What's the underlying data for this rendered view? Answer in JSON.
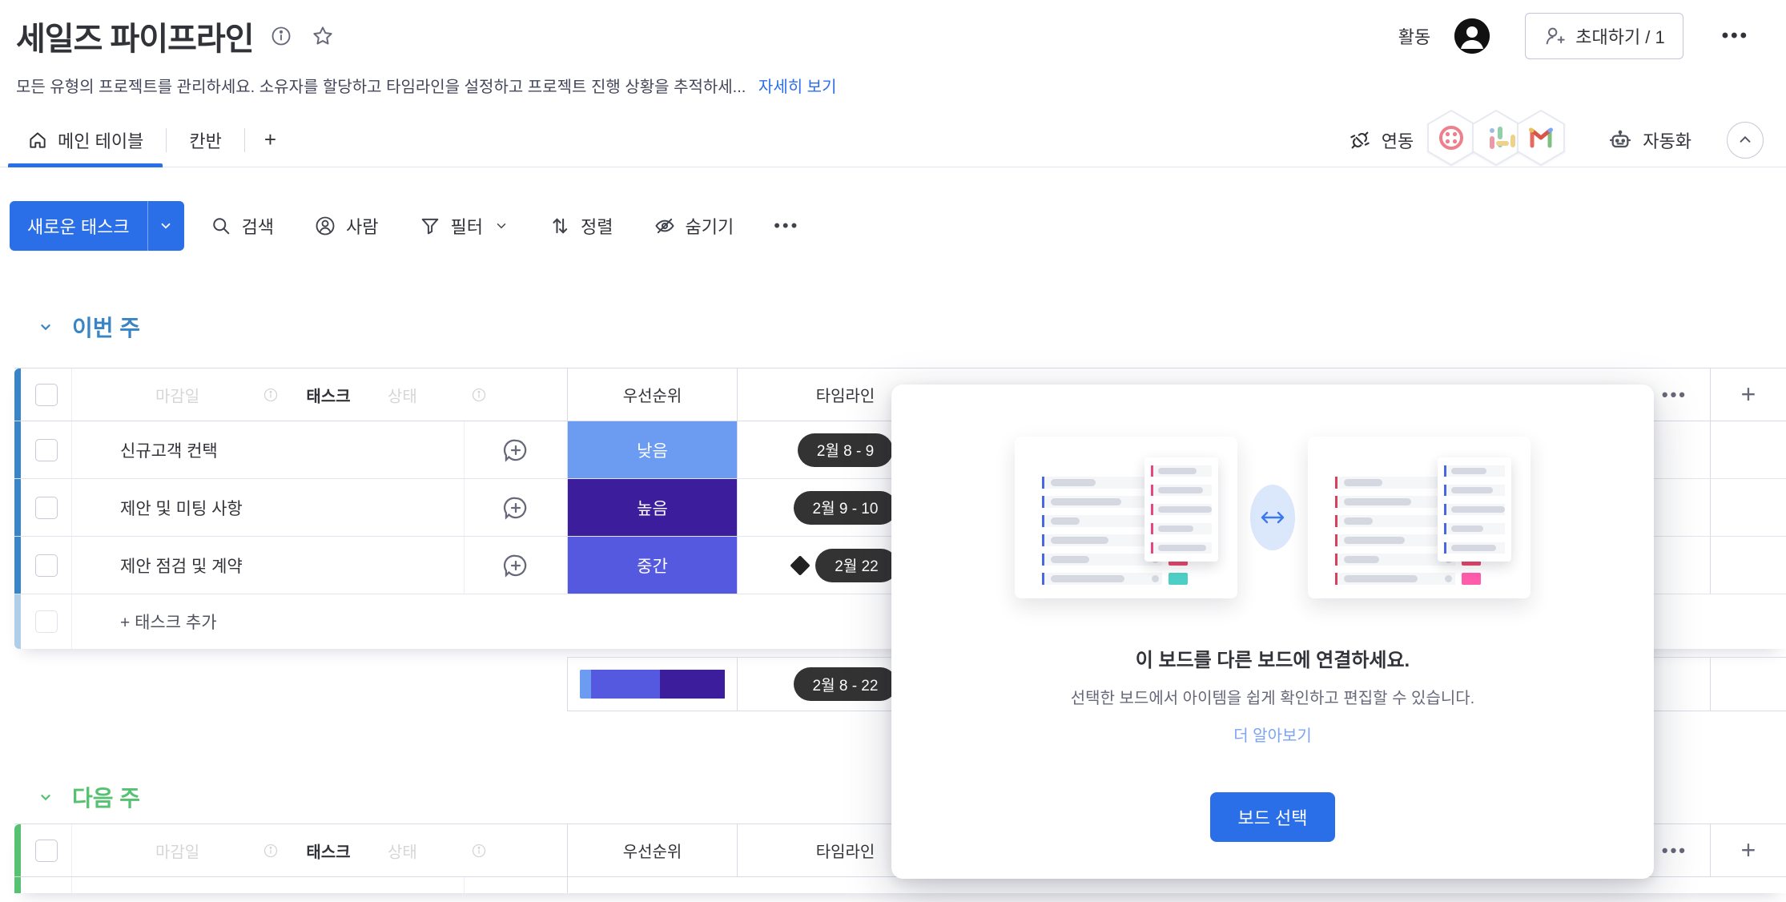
{
  "colors": {
    "accent": "#2b6fe8",
    "text": "#323338",
    "muted": "#676879",
    "group_blue": "#3984c4",
    "group_green": "#56c271",
    "pill_dark": "#333333"
  },
  "header": {
    "title": "세일즈 파이프라인",
    "activity_label": "활동",
    "invite_label": "초대하기 / 1",
    "more": "•••",
    "description": "모든 유형의 프로젝트를 관리하세요. 소유자를 할당하고 타임라인을 설정하고 프로젝트 진행 상황을 추적하세...",
    "see_more": "자세히 보기"
  },
  "tabs": {
    "items": [
      {
        "label": "메인 테이블",
        "active": true
      },
      {
        "label": "칸반",
        "active": false
      }
    ],
    "add_tab": "+",
    "integrate_label": "연동",
    "apps": [
      "twilio",
      "slack",
      "gmail"
    ],
    "automate_label": "자동화"
  },
  "toolbar": {
    "new_task": "새로운 태스크",
    "search": "검색",
    "person": "사람",
    "filter": "필터",
    "sort": "정렬",
    "hide": "숨기기",
    "more": "•••"
  },
  "table": {
    "columns": {
      "ghost_due": "마감일",
      "task": "태스크",
      "ghost_status": "상태",
      "priority": "우선순위",
      "timeline": "타임라인"
    },
    "header_more": "•••",
    "add_column": "+",
    "add_task": "+ 태스크 추가"
  },
  "groups": [
    {
      "name": "이번 주",
      "color": "#3984c4",
      "show_add": true,
      "show_summary": true,
      "partial_row": false,
      "rows": [
        {
          "task": "신규고객 컨택",
          "priority": "낮음",
          "priority_color": "#6c9bf2",
          "timeline": "2월 8 - 9",
          "milestone": false
        },
        {
          "task": "제안 및 미팅 사항",
          "priority": "높음",
          "priority_color": "#3c1e9c",
          "timeline": "2월 9 - 10",
          "milestone": false
        },
        {
          "task": "제안 점검 및 계약",
          "priority": "중간",
          "priority_color": "#5559df",
          "timeline": "2월 22",
          "milestone": true
        }
      ],
      "summary": {
        "timeline": "2월 8 - 22",
        "bar": [
          {
            "color": "#6c9bf2",
            "pct": 8
          },
          {
            "color": "#5559df",
            "pct": 47
          },
          {
            "color": "#3c1e9c",
            "pct": 45
          }
        ]
      }
    },
    {
      "name": "다음 주",
      "color": "#56c271",
      "show_add": false,
      "show_summary": false,
      "partial_row": true,
      "rows": []
    }
  ],
  "modal": {
    "title": "이 보드를 다른 보드에 연결하세요.",
    "description": "선택한 보드에서 아이템을 쉽게 확인하고 편집할 수 있습니다.",
    "learn_more": "더 알아보기",
    "select_button": "보드 선택",
    "illustration": {
      "cards": [
        {
          "accent": "#4a67e3",
          "overlay_accent": "#e8457e",
          "rows": [
            {
              "pill": 56,
              "chip": "#35c06c"
            },
            {
              "pill": 88,
              "chip": "#a358df"
            },
            {
              "pill": 36,
              "chip": "#35c06c"
            },
            {
              "pill": 72,
              "chip": "#f2a93b"
            },
            {
              "pill": 48,
              "chip": "#e8456c"
            },
            {
              "pill": 92,
              "chip": "#4ecfc5"
            }
          ],
          "overlay_pills": [
            48,
            56,
            76,
            44,
            60
          ]
        },
        {
          "accent": "#d9405c",
          "overlay_accent": "#4a67e3",
          "rows": [
            {
              "pill": 48,
              "chip": "#f2a93b"
            },
            {
              "pill": 84,
              "chip": "#e8456c"
            },
            {
              "pill": 36,
              "chip": "#f2a93b"
            },
            {
              "pill": 76,
              "chip": "#35c06c"
            },
            {
              "pill": 44,
              "chip": "#e8456c"
            },
            {
              "pill": 92,
              "chip": "#ff5cab"
            }
          ],
          "overlay_pills": [
            44,
            52,
            72,
            40,
            56
          ]
        }
      ]
    }
  }
}
